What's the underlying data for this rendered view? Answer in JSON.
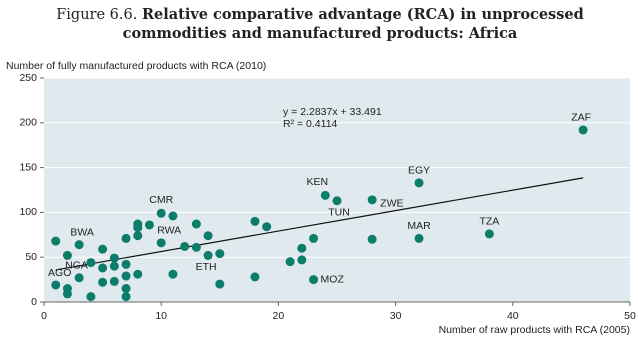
{
  "chart_data": {
    "type": "scatter",
    "figure_label": "Figure 6.6.",
    "title_lines": [
      "Relative comparative advantage (RCA) in unprocessed",
      "commodities and manufactured products: Africa"
    ],
    "y_label": "Number of fully manufactured products with RCA (2010)",
    "x_label": "Number of raw products with RCA (2005)",
    "equation": "y = 2.2837x + 33.491",
    "r_squared": "R² = 0.4114",
    "trendline": {
      "slope": 2.2837,
      "intercept": 33.491
    },
    "xlim": [
      0,
      50
    ],
    "xticks": [
      0,
      10,
      20,
      30,
      40,
      50
    ],
    "ylim": [
      0,
      250
    ],
    "yticks": [
      0,
      50,
      100,
      150,
      200,
      250
    ],
    "grid": true,
    "color": "#0b7d6a",
    "x": [
      46,
      32,
      24,
      25,
      28,
      32,
      38,
      28,
      23,
      22,
      22,
      21,
      23,
      18,
      19,
      18,
      13,
      12,
      13,
      14,
      14,
      15,
      15,
      11,
      10,
      9,
      8,
      8,
      8,
      10,
      11,
      7,
      1,
      2,
      3,
      5,
      4,
      6,
      6,
      7,
      5,
      7,
      8,
      3,
      6,
      5,
      1,
      2,
      2,
      4,
      7,
      7
    ],
    "values": [
      192,
      133,
      119,
      113,
      114,
      71,
      76,
      70,
      71,
      60,
      47,
      45,
      25,
      90,
      84,
      28,
      61,
      62,
      87,
      74,
      52,
      54,
      20,
      96,
      99,
      86,
      87,
      83,
      74,
      66,
      31,
      71,
      68,
      52,
      64,
      59,
      44,
      49,
      40,
      42,
      38,
      29,
      31,
      27,
      23,
      22,
      19,
      15,
      9,
      6,
      15,
      6
    ],
    "labels": [
      "ZAF",
      "EGY",
      "KEN",
      "TUN",
      "ZWE",
      "MAR",
      "TZA",
      null,
      null,
      null,
      null,
      null,
      "MOZ",
      null,
      null,
      null,
      null,
      null,
      null,
      null,
      "ETH",
      null,
      null,
      null,
      "CMR",
      null,
      null,
      null,
      null,
      "RWA",
      null,
      null,
      null,
      null,
      "BWA",
      null,
      "NGA",
      null,
      null,
      null,
      null,
      null,
      null,
      null,
      null,
      null,
      "AGO",
      null,
      null,
      null,
      null,
      null
    ]
  }
}
